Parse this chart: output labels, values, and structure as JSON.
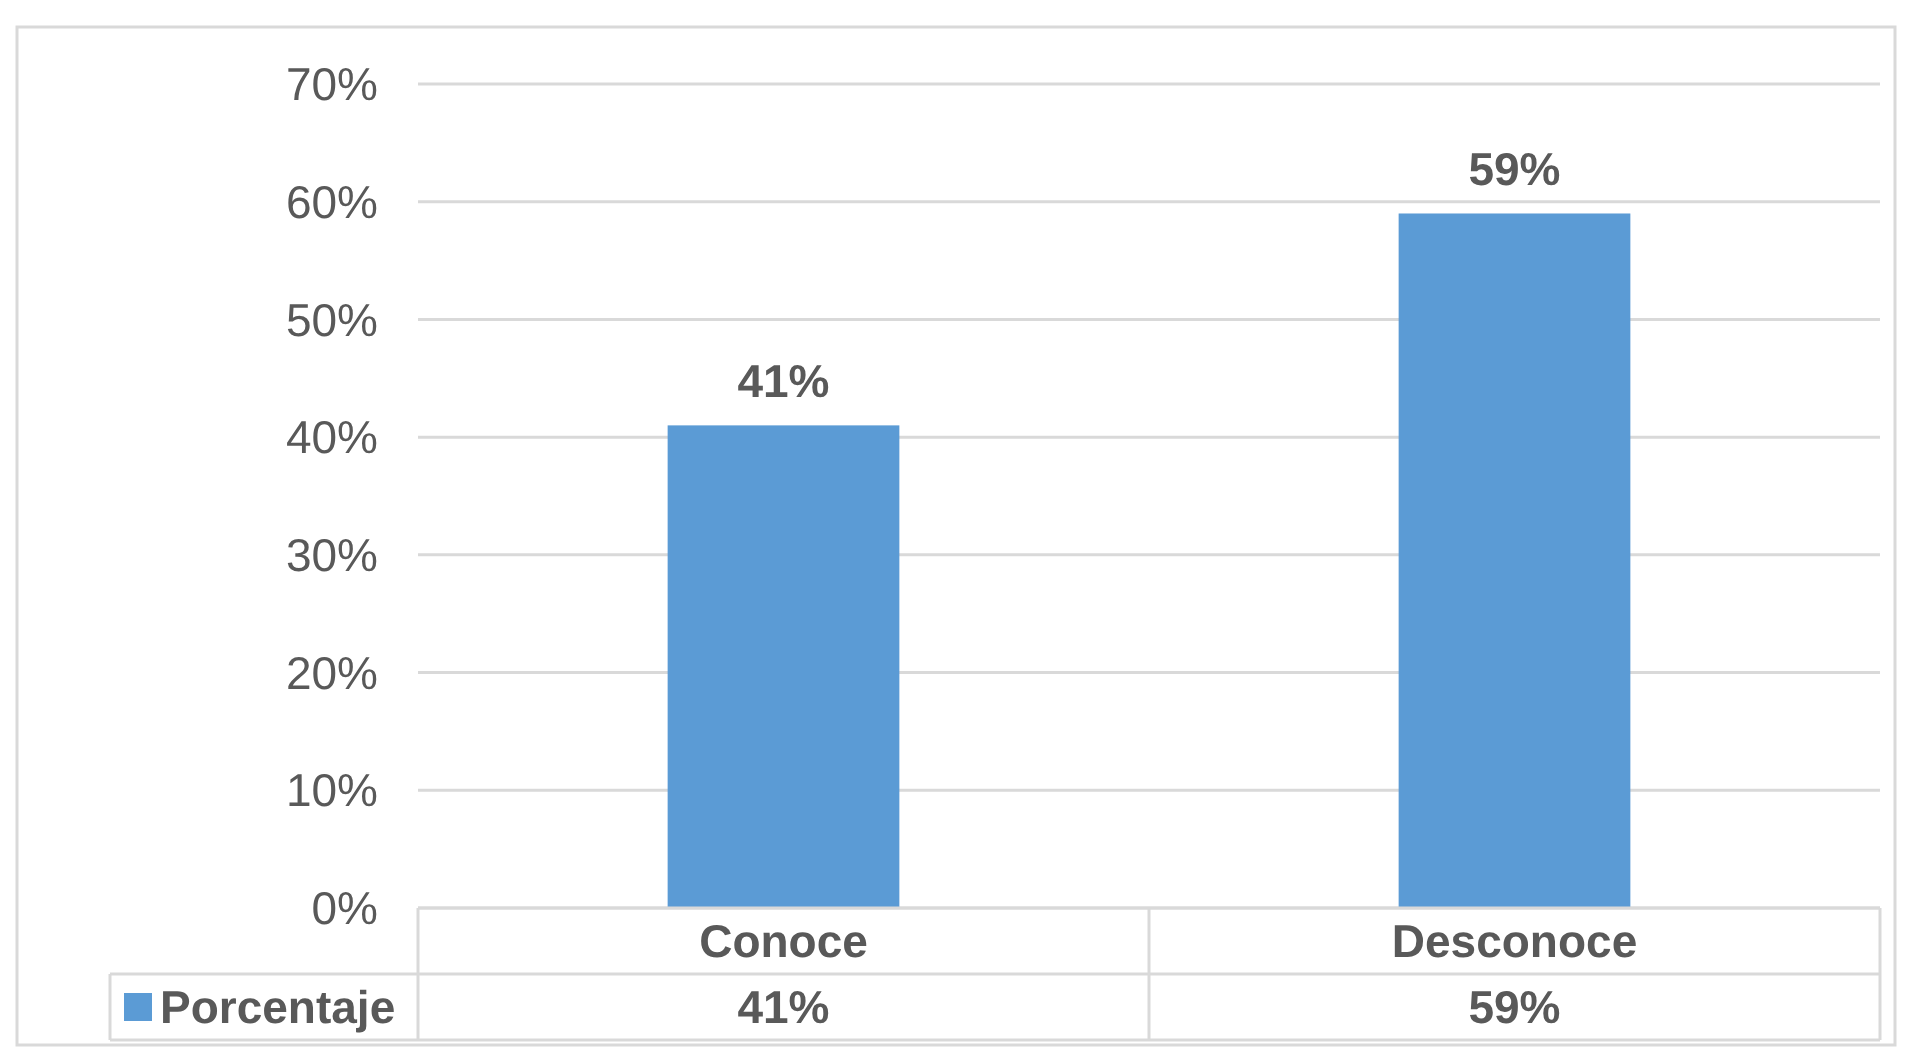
{
  "chart_data": {
    "type": "bar",
    "categories": [
      "Conoce",
      "Desconoce"
    ],
    "series": [
      {
        "name": "Porcentaje",
        "color": "#5b9bd5",
        "values": [
          41,
          59
        ],
        "value_labels": [
          "41%",
          "59%"
        ]
      }
    ],
    "ylim": [
      0,
      70
    ],
    "yticks": [
      {
        "value": 0,
        "label": "0%"
      },
      {
        "value": 10,
        "label": "10%"
      },
      {
        "value": 20,
        "label": "20%"
      },
      {
        "value": 30,
        "label": "30%"
      },
      {
        "value": 40,
        "label": "40%"
      },
      {
        "value": 50,
        "label": "50%"
      },
      {
        "value": 60,
        "label": "60%"
      },
      {
        "value": 70,
        "label": "70%"
      }
    ],
    "grid": "y",
    "legend": "bottom"
  }
}
